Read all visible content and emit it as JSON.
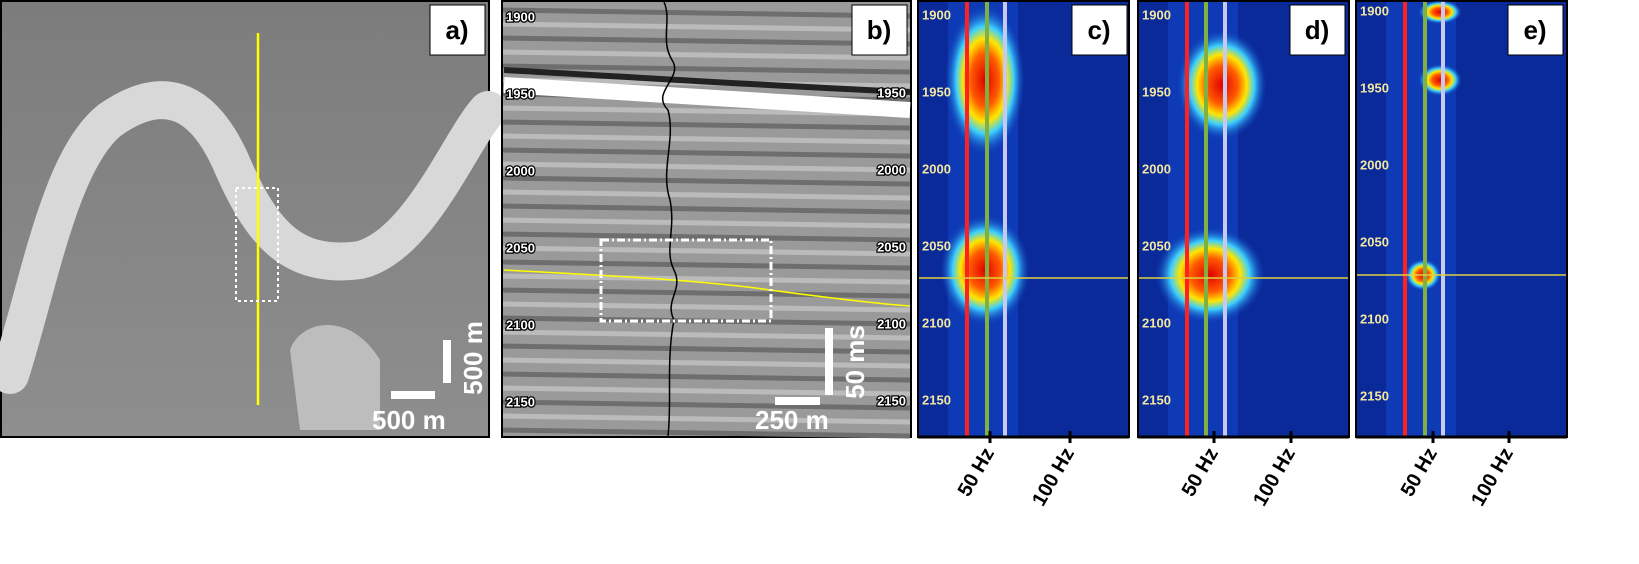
{
  "panels": [
    {
      "label": "a)",
      "scale_bars": [
        "500 m",
        "500 m"
      ]
    },
    {
      "label": "b)",
      "scale_bars": [
        "250 m",
        "50 ms"
      ],
      "time_labels": [
        1900,
        1950,
        2000,
        2050,
        2100,
        2150
      ]
    },
    {
      "label": "c)",
      "time_labels": [
        1900,
        1950,
        2000,
        2050,
        2100,
        2150
      ],
      "freq_labels": [
        "50 Hz",
        "100 Hz"
      ]
    },
    {
      "label": "d)",
      "time_labels": [
        1900,
        1950,
        2000,
        2050,
        2100,
        2150
      ],
      "freq_labels": [
        "50 Hz",
        "100 Hz"
      ]
    },
    {
      "label": "e)",
      "time_labels": [
        1900,
        1950,
        2000,
        2050,
        2100,
        2150
      ],
      "freq_labels": [
        "50 Hz",
        "100 Hz"
      ]
    }
  ]
}
